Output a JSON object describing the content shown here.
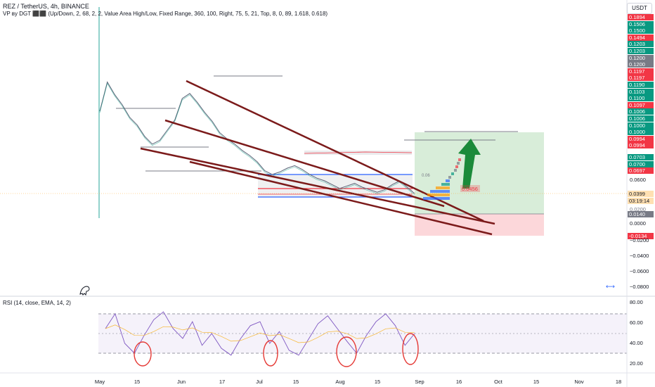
{
  "header": {
    "symbol_line": "REZ / TetherUS, 4h, BINANCE",
    "indicator_line": "VP вy DGT ⬛⬛ (Up/Down, 2, 68, 2, 2, Value Area High/Low, Fixed Range, 360, 100, Right, 75, 5, 21, Top, 8, 0, 89, 1.618, 0.618)",
    "currency": "USDT"
  },
  "rsi_header": "RSI (14, close, EMA, 14, 2)",
  "price_tags": [
    {
      "text": "0.1894",
      "color": "#f23645"
    },
    {
      "text": "0.1506",
      "color": "#089981"
    },
    {
      "text": "0.1500",
      "color": "#089981"
    },
    {
      "text": "0.1494",
      "color": "#f23645"
    },
    {
      "text": "0.1203",
      "color": "#089981"
    },
    {
      "text": "0.1203",
      "color": "#089981"
    },
    {
      "text": "0.1200",
      "color": "#787b86"
    },
    {
      "text": "0.1200",
      "color": "#787b86"
    },
    {
      "text": "0.1197",
      "color": "#f23645"
    },
    {
      "text": "0.1197",
      "color": "#f23645"
    },
    {
      "text": "0.1190",
      "color": "#089981"
    },
    {
      "text": "0.1103",
      "color": "#089981"
    },
    {
      "text": "0.1100",
      "color": "#089981"
    },
    {
      "text": "0.1097",
      "color": "#f23645"
    },
    {
      "text": "0.1006",
      "color": "#089981"
    },
    {
      "text": "0.1006",
      "color": "#089981"
    },
    {
      "text": "0.1000",
      "color": "#089981"
    },
    {
      "text": "0.1000",
      "color": "#089981"
    },
    {
      "text": "0.0994",
      "color": "#f23645"
    },
    {
      "text": "0.0994",
      "color": "#f23645"
    }
  ],
  "lower_tags": [
    {
      "text": "0.0703",
      "color": "#089981"
    },
    {
      "text": "0.0700",
      "color": "#089981"
    },
    {
      "text": "0.0697",
      "color": "#f23645"
    }
  ],
  "current_price": {
    "text": "0.0399",
    "countdown": "03:19:14",
    "color": "#ffe0b2"
  },
  "stop_tag": {
    "text": "0.0140",
    "color": "#787b86"
  },
  "neg_tag": {
    "text": "-0.0134",
    "color": "#f23645"
  },
  "vp_label_value": "0.0456",
  "vp_label_small": "0.06",
  "axis_labels": [
    "0.0600",
    "0.0200",
    "0.0000",
    "−0.0200",
    "−0.0400",
    "−0.0600",
    "−0.0800"
  ],
  "rsi_axis": [
    "80.00",
    "60.00",
    "40.00",
    "20.00"
  ],
  "x_axis": [
    "May",
    "15",
    "Jun",
    "17",
    "Jul",
    "15",
    "Aug",
    "15",
    "Sep",
    "16",
    "Oct",
    "15",
    "Nov",
    "18"
  ],
  "chart_data": {
    "type": "line",
    "title": "REZ / TetherUS, 4h, BINANCE",
    "series": [
      {
        "values": [
          0.105,
          0.128,
          0.118,
          0.11,
          0.1,
          0.094,
          0.085,
          0.079,
          0.082,
          0.09,
          0.098,
          0.115,
          0.119,
          0.112,
          0.104,
          0.097,
          0.088,
          0.083,
          0.079,
          0.074,
          0.07,
          0.065,
          0.058,
          0.055,
          0.057,
          0.06,
          0.062,
          0.059,
          0.055,
          0.052,
          0.05,
          0.047,
          0.044,
          0.046,
          0.048,
          0.045,
          0.043,
          0.041,
          0.043,
          0.047,
          0.05,
          0.045,
          0.04
        ]
      }
    ],
    "rsi": [
      55,
      70,
      40,
      30,
      48,
      64,
      72,
      55,
      45,
      62,
      38,
      50,
      35,
      28,
      45,
      58,
      62,
      40,
      52,
      33,
      28,
      44,
      60,
      68,
      55,
      42,
      30,
      48,
      62,
      70,
      58,
      38,
      50
    ],
    "ylim": [
      -0.08,
      0.19
    ],
    "rsi_levels": [
      70,
      50,
      30
    ]
  }
}
